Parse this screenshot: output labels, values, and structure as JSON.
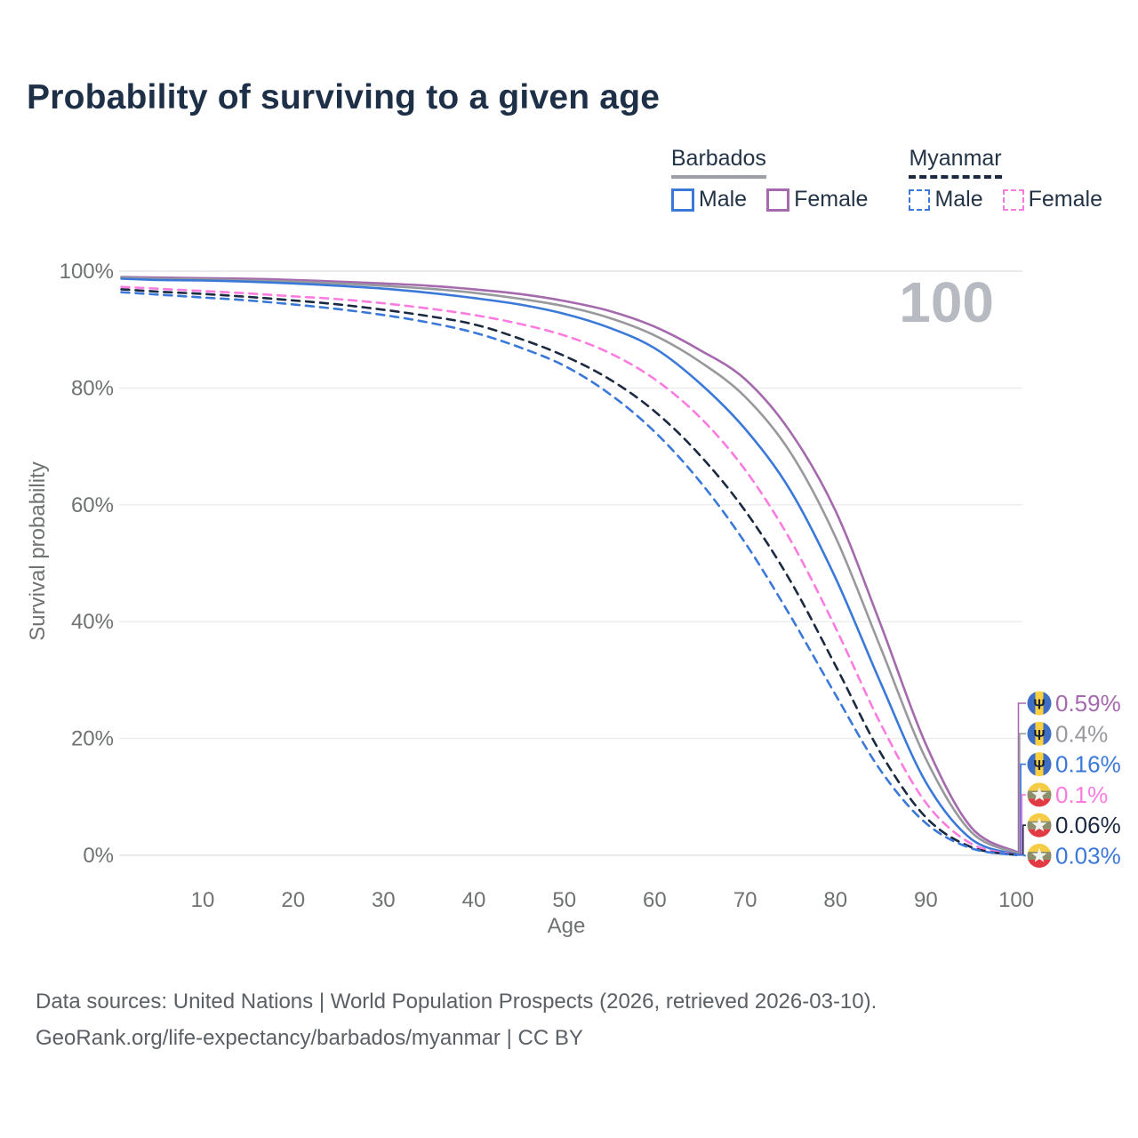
{
  "title": "Probability of surviving to a given age",
  "watermark": "100",
  "legend": {
    "groups": [
      {
        "label": "Barbados",
        "line_style": "solid",
        "underline_color": "#9aa0a6",
        "items": [
          {
            "label": "Male",
            "color": "#3b79d9"
          },
          {
            "label": "Female",
            "color": "#a569ad"
          }
        ]
      },
      {
        "label": "Myanmar",
        "line_style": "dashed",
        "underline_color": "#1b2a41",
        "items": [
          {
            "label": "Male",
            "color": "#3b79d9"
          },
          {
            "label": "Female",
            "color": "#fb7ce0"
          }
        ]
      }
    ]
  },
  "chart_data": {
    "type": "line",
    "title": "Probability of surviving to a given age",
    "xlabel": "Age",
    "ylabel": "Survival probability",
    "xlim": [
      1,
      100
    ],
    "ylim": [
      0,
      100
    ],
    "grid": "horizontal",
    "legend_position": "top-right",
    "xticks": [
      10,
      20,
      30,
      40,
      50,
      60,
      70,
      80,
      90,
      100
    ],
    "yticks": [
      {
        "value": 0,
        "label": "0%"
      },
      {
        "value": 20,
        "label": "20%"
      },
      {
        "value": 40,
        "label": "40%"
      },
      {
        "value": 60,
        "label": "60%"
      },
      {
        "value": 80,
        "label": "80%"
      },
      {
        "value": 100,
        "label": "100%"
      }
    ],
    "x": [
      1,
      5,
      10,
      15,
      20,
      25,
      30,
      35,
      40,
      45,
      50,
      55,
      60,
      65,
      70,
      75,
      80,
      85,
      90,
      95,
      100
    ],
    "series": [
      {
        "name": "Barbados Female",
        "country": "Barbados",
        "sex": "Female",
        "color": "#a569ad",
        "dash": "solid",
        "flag": "barbados",
        "end_label": "0.59%",
        "values": [
          99.0,
          98.9,
          98.8,
          98.7,
          98.5,
          98.2,
          97.9,
          97.5,
          96.9,
          96.1,
          94.9,
          93.2,
          90.5,
          86.5,
          81.5,
          72.5,
          59.0,
          39.5,
          19.0,
          4.8,
          0.59
        ]
      },
      {
        "name": "Barbados Both sexes",
        "country": "Barbados",
        "sex": "Both",
        "color": "#97999d",
        "dash": "solid",
        "flag": "barbados",
        "end_label": "0.4%",
        "values": [
          98.9,
          98.7,
          98.6,
          98.4,
          98.2,
          97.9,
          97.5,
          97.0,
          96.3,
          95.3,
          94.0,
          92.0,
          89.0,
          84.5,
          78.5,
          69.0,
          54.5,
          35.5,
          16.5,
          4.0,
          0.4
        ]
      },
      {
        "name": "Barbados Male",
        "country": "Barbados",
        "sex": "Male",
        "color": "#3b79d9",
        "dash": "solid",
        "flag": "barbados",
        "end_label": "0.16%",
        "values": [
          98.7,
          98.5,
          98.4,
          98.2,
          97.9,
          97.5,
          97.0,
          96.3,
          95.4,
          94.3,
          92.7,
          90.3,
          86.8,
          80.8,
          73.0,
          62.5,
          47.5,
          29.5,
          12.5,
          2.8,
          0.16
        ]
      },
      {
        "name": "Myanmar Female",
        "country": "Myanmar",
        "sex": "Female",
        "color": "#fb7ce0",
        "dash": "dashed",
        "flag": "myanmar",
        "end_label": "0.1%",
        "values": [
          97.3,
          97.0,
          96.6,
          96.2,
          95.7,
          95.2,
          94.5,
          93.6,
          92.5,
          91.0,
          89.0,
          86.0,
          81.5,
          75.0,
          66.0,
          54.0,
          39.0,
          22.5,
          9.0,
          2.0,
          0.1
        ]
      },
      {
        "name": "Myanmar Both sexes",
        "country": "Myanmar",
        "sex": "Both",
        "color": "#1b2a41",
        "dash": "dashed",
        "flag": "myanmar",
        "end_label": "0.06%",
        "values": [
          96.9,
          96.5,
          96.1,
          95.6,
          95.0,
          94.3,
          93.4,
          92.3,
          90.9,
          88.5,
          85.5,
          81.5,
          76.0,
          68.5,
          59.0,
          47.0,
          32.5,
          17.5,
          6.5,
          1.4,
          0.06
        ]
      },
      {
        "name": "Myanmar Male",
        "country": "Myanmar",
        "sex": "Male",
        "color": "#3b79d9",
        "dash": "dashed",
        "flag": "myanmar",
        "end_label": "0.03%",
        "values": [
          96.4,
          96.0,
          95.5,
          95.0,
          94.3,
          93.5,
          92.5,
          91.2,
          89.5,
          87.0,
          83.8,
          79.0,
          72.5,
          64.0,
          53.5,
          41.0,
          27.5,
          14.5,
          5.5,
          1.2,
          0.03
        ]
      }
    ]
  },
  "footer": {
    "line1": "Data sources: United Nations | World Population Prospects (2026, retrieved 2026-03-10).",
    "line2": "GeoRank.org/life-expectancy/barbados/myanmar | CC BY"
  }
}
